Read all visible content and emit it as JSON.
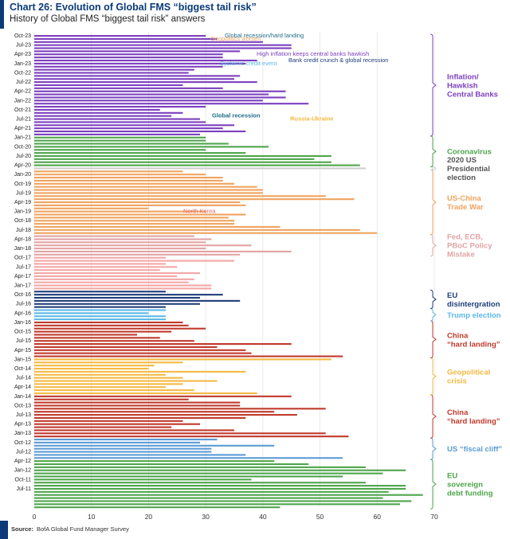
{
  "header": {
    "title": "Chart 26: Evolution of Global FMS “biggest tail risk”",
    "subtitle": "History of Global FMS “biggest tail risk” answers"
  },
  "footer": {
    "source_label": "Source:",
    "source_text": "BofA Global Fund Manager Survey"
  },
  "chart_data": {
    "type": "bar",
    "orientation": "horizontal",
    "xlim": [
      0,
      70
    ],
    "x_ticks": [
      "0",
      "10",
      "20",
      "30",
      "40",
      "50",
      "60",
      "70"
    ],
    "y_tick_labels": [
      "Oct-23",
      "Jul-23",
      "Apr-23",
      "Jan-23",
      "Oct-22",
      "Jul-22",
      "Apr-22",
      "Jan-22",
      "Oct-21",
      "Jul-21",
      "Apr-21",
      "Jan-21",
      "Oct-20",
      "Jul-20",
      "Apr-20",
      "Jan-20",
      "Oct-19",
      "Jul-19",
      "Apr-19",
      "Jan-19",
      "Oct-18",
      "Jul-18",
      "Apr-18",
      "Jan-18",
      "Oct-17",
      "Jul-17",
      "Apr-17",
      "Jan-17",
      "Oct-16",
      "Jul-16",
      "Apr-16",
      "Jan-16",
      "Oct-15",
      "Jul-15",
      "Apr-15",
      "Jan-15",
      "Oct-14",
      "Jul-14",
      "Apr-14",
      "Jan-14",
      "Oct-13",
      "Jul-13",
      "Apr-13",
      "Jan-13",
      "Oct-12",
      "Jul-12",
      "Apr-12",
      "Jan-12",
      "Oct-11",
      "Jul-11"
    ],
    "groups": [
      {
        "name": "EU sovereign debt funding",
        "label_lines": [
          "EU",
          "sovereign",
          "debt funding"
        ],
        "color": "#4ea54b",
        "values": [
          43,
          64,
          66,
          61,
          68,
          62,
          65,
          65,
          58,
          38,
          54,
          61,
          65,
          58,
          48,
          42
        ]
      },
      {
        "name": "US fiscal cliff",
        "label_lines": [
          "US “fiscal cliff”"
        ],
        "color": "#5b9bd5",
        "values": [
          54,
          37,
          31,
          31,
          42,
          29,
          32
        ]
      },
      {
        "name": "China hard landing (2013-14)",
        "label_lines": [
          "China",
          "“hard landing”"
        ],
        "color": "#c0392b",
        "values": [
          55,
          51,
          35,
          24,
          29,
          26,
          37,
          46,
          42,
          51,
          36,
          36,
          27,
          45
        ]
      },
      {
        "name": "Geopolitical crisis",
        "label_lines": [
          "Geopolitical",
          "crisis"
        ],
        "color": "#f5b942",
        "values": [
          39,
          28,
          23,
          26,
          32,
          26,
          23,
          37,
          20,
          21,
          26,
          52
        ]
      },
      {
        "name": "China hard landing (2015-16)",
        "label_lines": [
          "China",
          "“hard landing”"
        ],
        "color": "#c0392b",
        "values": [
          54,
          38,
          37,
          32,
          45,
          28,
          22,
          18,
          24,
          30,
          27,
          26
        ]
      },
      {
        "name": "Trump election",
        "label_lines": [
          "Trump election"
        ],
        "color": "#5bb8e8",
        "values": [
          23,
          23,
          20,
          23
        ]
      },
      {
        "name": "EU disintergration",
        "label_lines": [
          "EU",
          "disintergration"
        ],
        "color": "#1f3d7a",
        "values": [
          23,
          29,
          36,
          29,
          33,
          23
        ]
      },
      {
        "name": "North Korea",
        "label_lines": [
          "North Korea"
        ],
        "color": "#f4a6a6",
        "values": [
          31,
          31,
          27,
          28,
          25,
          29,
          22,
          25,
          23,
          35,
          23
        ]
      },
      {
        "name": "Fed, ECB, PBoC Policy Mistake",
        "label_lines": [
          "Fed, ECB,",
          "PBoC Policy",
          "Mistake"
        ],
        "color": "#e3a3a3",
        "values": [
          36,
          45,
          30,
          38,
          30,
          31,
          28
        ]
      },
      {
        "name": "US-China Trade War",
        "label_lines": [
          "US-China",
          "Trade War"
        ],
        "color": "#f0a35e",
        "values": [
          60,
          57,
          43,
          35,
          35,
          34,
          37,
          30,
          20,
          37,
          36,
          56,
          51,
          40,
          40,
          39,
          35,
          33,
          33,
          30,
          26
        ]
      },
      {
        "name": "2020 US Presidential election",
        "label_lines": [
          "2020 US",
          "Presidential",
          "election"
        ],
        "color": "#cfcfcf",
        "values": [
          58
        ]
      },
      {
        "name": "Coronavirus",
        "label_lines": [
          "Coronavirus"
        ],
        "color": "#4ea54b",
        "values": [
          57,
          52,
          49,
          52,
          37,
          30,
          41,
          34,
          30,
          30
        ]
      },
      {
        "name": "Inflation/Hawkish Central Banks",
        "label_lines": [
          "Inflation/",
          "Hawkish",
          "Central Banks"
        ],
        "color": "#7b3fbf",
        "values": [
          29,
          37,
          33,
          35,
          30,
          29,
          24,
          26,
          22,
          30,
          48,
          40,
          44,
          41,
          44,
          33,
          26,
          39,
          35,
          36,
          27,
          28,
          33,
          37,
          39,
          33,
          33,
          36,
          45,
          45,
          40,
          32,
          30
        ]
      }
    ],
    "annotations": [
      {
        "text": "Global recession/hard landing",
        "color": "#1f6b8a"
      },
      {
        "text": "Geopolitics worsen",
        "color": "#f0a35e"
      },
      {
        "text": "High inflation keeps central banks hawkish",
        "color": "#7b3fbf"
      },
      {
        "text": "Bank credit crunch & global recession",
        "color": "#1f3d7a"
      },
      {
        "text": "Systemic credit event",
        "color": "#5bb8e8"
      },
      {
        "text": "Global recession",
        "color": "#1f6b8a"
      },
      {
        "text": "Russia-Ukraine",
        "color": "#f5b942"
      },
      {
        "text": "North Korea",
        "color": "#e86a6a"
      }
    ]
  }
}
